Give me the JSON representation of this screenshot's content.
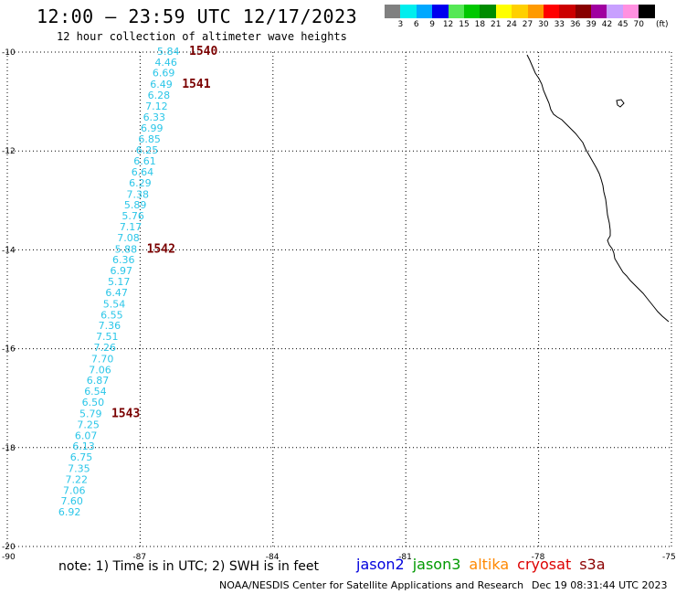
{
  "header": {
    "title": "12:00 — 23:59 UTC 12/17/2023",
    "subtitle": "12 hour collection of altimeter wave heights"
  },
  "legend": {
    "colors": [
      "#808080",
      "#00eeee",
      "#00a8ff",
      "#0000ee",
      "#55e855",
      "#00c800",
      "#008c00",
      "#ffff00",
      "#ffd000",
      "#ff9a00",
      "#ff0000",
      "#cc0000",
      "#880000",
      "#a000a0",
      "#c8a0ff",
      "#ff90e0",
      "#000000"
    ],
    "labels": [
      "3",
      "6",
      "9",
      "12",
      "15",
      "18",
      "21",
      "24",
      "27",
      "30",
      "33",
      "36",
      "39",
      "42",
      "45",
      "70"
    ],
    "unit": "(ft)"
  },
  "axes": {
    "lat_labels": [
      "-10",
      "-12",
      "-14",
      "-16",
      "-18",
      "-20"
    ],
    "lon_labels": [
      "-90",
      "-87",
      "-84",
      "-81",
      "-78",
      "-75"
    ]
  },
  "track": {
    "color": "#2bc6e8",
    "points": [
      {
        "lat": -9.98,
        "val": "5.84"
      },
      {
        "lat": -10.2,
        "val": "4.46"
      },
      {
        "lat": -10.42,
        "val": "6.69"
      },
      {
        "lat": -10.65,
        "val": "6.49"
      },
      {
        "lat": -10.87,
        "val": "6.28"
      },
      {
        "lat": -11.09,
        "val": "7.12"
      },
      {
        "lat": -11.31,
        "val": "6.33"
      },
      {
        "lat": -11.53,
        "val": "6.99"
      },
      {
        "lat": -11.76,
        "val": "6.85"
      },
      {
        "lat": -11.98,
        "val": "6.25"
      },
      {
        "lat": -12.2,
        "val": "6.61"
      },
      {
        "lat": -12.42,
        "val": "6.64"
      },
      {
        "lat": -12.64,
        "val": "6.29"
      },
      {
        "lat": -12.87,
        "val": "7.38"
      },
      {
        "lat": -13.09,
        "val": "5.89"
      },
      {
        "lat": -13.31,
        "val": "5.76"
      },
      {
        "lat": -13.53,
        "val": "7.17"
      },
      {
        "lat": -13.75,
        "val": "7.08"
      },
      {
        "lat": -13.98,
        "val": "5.88"
      },
      {
        "lat": -14.2,
        "val": "6.36"
      },
      {
        "lat": -14.42,
        "val": "6.97"
      },
      {
        "lat": -14.64,
        "val": "5.17"
      },
      {
        "lat": -14.86,
        "val": "6.47"
      },
      {
        "lat": -15.09,
        "val": "5.54"
      },
      {
        "lat": -15.31,
        "val": "6.55"
      },
      {
        "lat": -15.53,
        "val": "7.36"
      },
      {
        "lat": -15.75,
        "val": "7.51"
      },
      {
        "lat": -15.97,
        "val": "7.26"
      },
      {
        "lat": -16.2,
        "val": "7.70"
      },
      {
        "lat": -16.42,
        "val": "7.06"
      },
      {
        "lat": -16.64,
        "val": "6.87"
      },
      {
        "lat": -16.86,
        "val": "6.54"
      },
      {
        "lat": -17.08,
        "val": "6.50"
      },
      {
        "lat": -17.31,
        "val": "5.79"
      },
      {
        "lat": -17.53,
        "val": "7.25"
      },
      {
        "lat": -17.75,
        "val": "6.07"
      },
      {
        "lat": -17.97,
        "val": "6.13"
      },
      {
        "lat": -18.19,
        "val": "6.75"
      },
      {
        "lat": -18.42,
        "val": "7.35"
      },
      {
        "lat": -18.64,
        "val": "7.22"
      },
      {
        "lat": -18.86,
        "val": "7.06"
      },
      {
        "lat": -19.08,
        "val": "7.60"
      },
      {
        "lat": -19.3,
        "val": "6.92"
      }
    ],
    "passes": [
      {
        "id": "1540",
        "lat": -9.98
      },
      {
        "id": "1541",
        "lat": -10.65
      },
      {
        "id": "1542",
        "lat": -13.98
      },
      {
        "id": "1543",
        "lat": -17.31
      }
    ]
  },
  "footer": {
    "note": "note: 1) Time is in UTC; 2) SWH is in feet",
    "satellites": [
      {
        "name": "jason2",
        "color": "#0000dd"
      },
      {
        "name": "jason3",
        "color": "#009900"
      },
      {
        "name": "altika",
        "color": "#ff8800"
      },
      {
        "name": "cryosat",
        "color": "#dd0000"
      },
      {
        "name": "s3a",
        "color": "#8b0000"
      }
    ],
    "credit": "NOAA/NESDIS Center for Satellite Applications and Research",
    "timestamp": "Dec 19 08:31:44 UTC 2023"
  }
}
